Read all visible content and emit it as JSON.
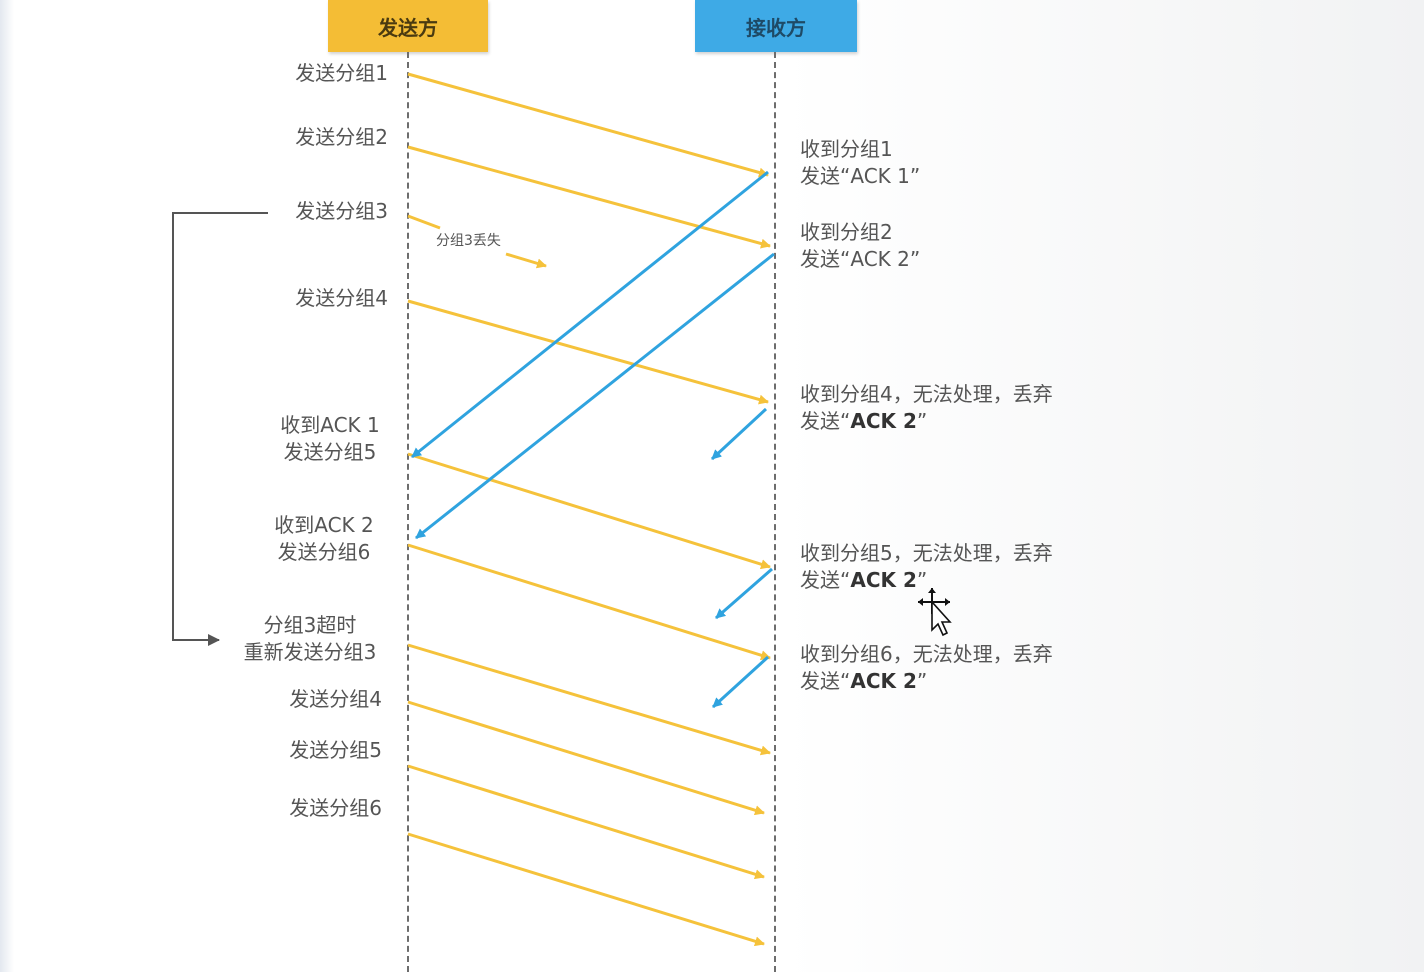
{
  "header": {
    "sender": "发送方",
    "receiver": "接收方"
  },
  "sender_labels": {
    "send1": "发送分组1",
    "send2": "发送分组2",
    "send3": "发送分组3",
    "send4": "发送分组4",
    "ack1_line1": "收到ACK 1",
    "ack1_line2": "发送分组5",
    "ack2_line1": "收到ACK 2",
    "ack2_line2": "发送分组6",
    "timeout_line1": "分组3超时",
    "timeout_line2": "重新发送分组3",
    "resend4": "发送分组4",
    "resend5": "发送分组5",
    "resend6": "发送分组6"
  },
  "lost_label": "分组3丢失",
  "receiver_labels": {
    "r1_line1": "收到分组1",
    "r1_line2_prefix": "发送“",
    "r1_line2_value": "ACK 1",
    "r1_line2_suffix": "”",
    "r2_line1": "收到分组2",
    "r2_line2_prefix": "发送“",
    "r2_line2_value": "ACK 2",
    "r2_line2_suffix": "”",
    "r4_line1": "收到分组4，无法处理，丢弃",
    "r4_line2_prefix": "发送“",
    "r4_line2_value": "ACK 2",
    "r4_line2_suffix": "”",
    "r5_line1": "收到分组5，无法处理，丢弃",
    "r5_line2_prefix": "发送“",
    "r5_line2_value": "ACK 2",
    "r5_line2_suffix": "”",
    "r6_line1": "收到分组6，无法处理，丢弃",
    "r6_line2_prefix": "发送“",
    "r6_line2_value": "ACK 2",
    "r6_line2_suffix": "”"
  },
  "colors": {
    "sender": "#f4bd35",
    "receiver": "#3eaae6",
    "data_arrow": "#f5c23b",
    "ack_arrow": "#2fa3df",
    "timeout_bracket": "#555555"
  },
  "icons": {
    "cursor": "move-cursor-icon"
  }
}
